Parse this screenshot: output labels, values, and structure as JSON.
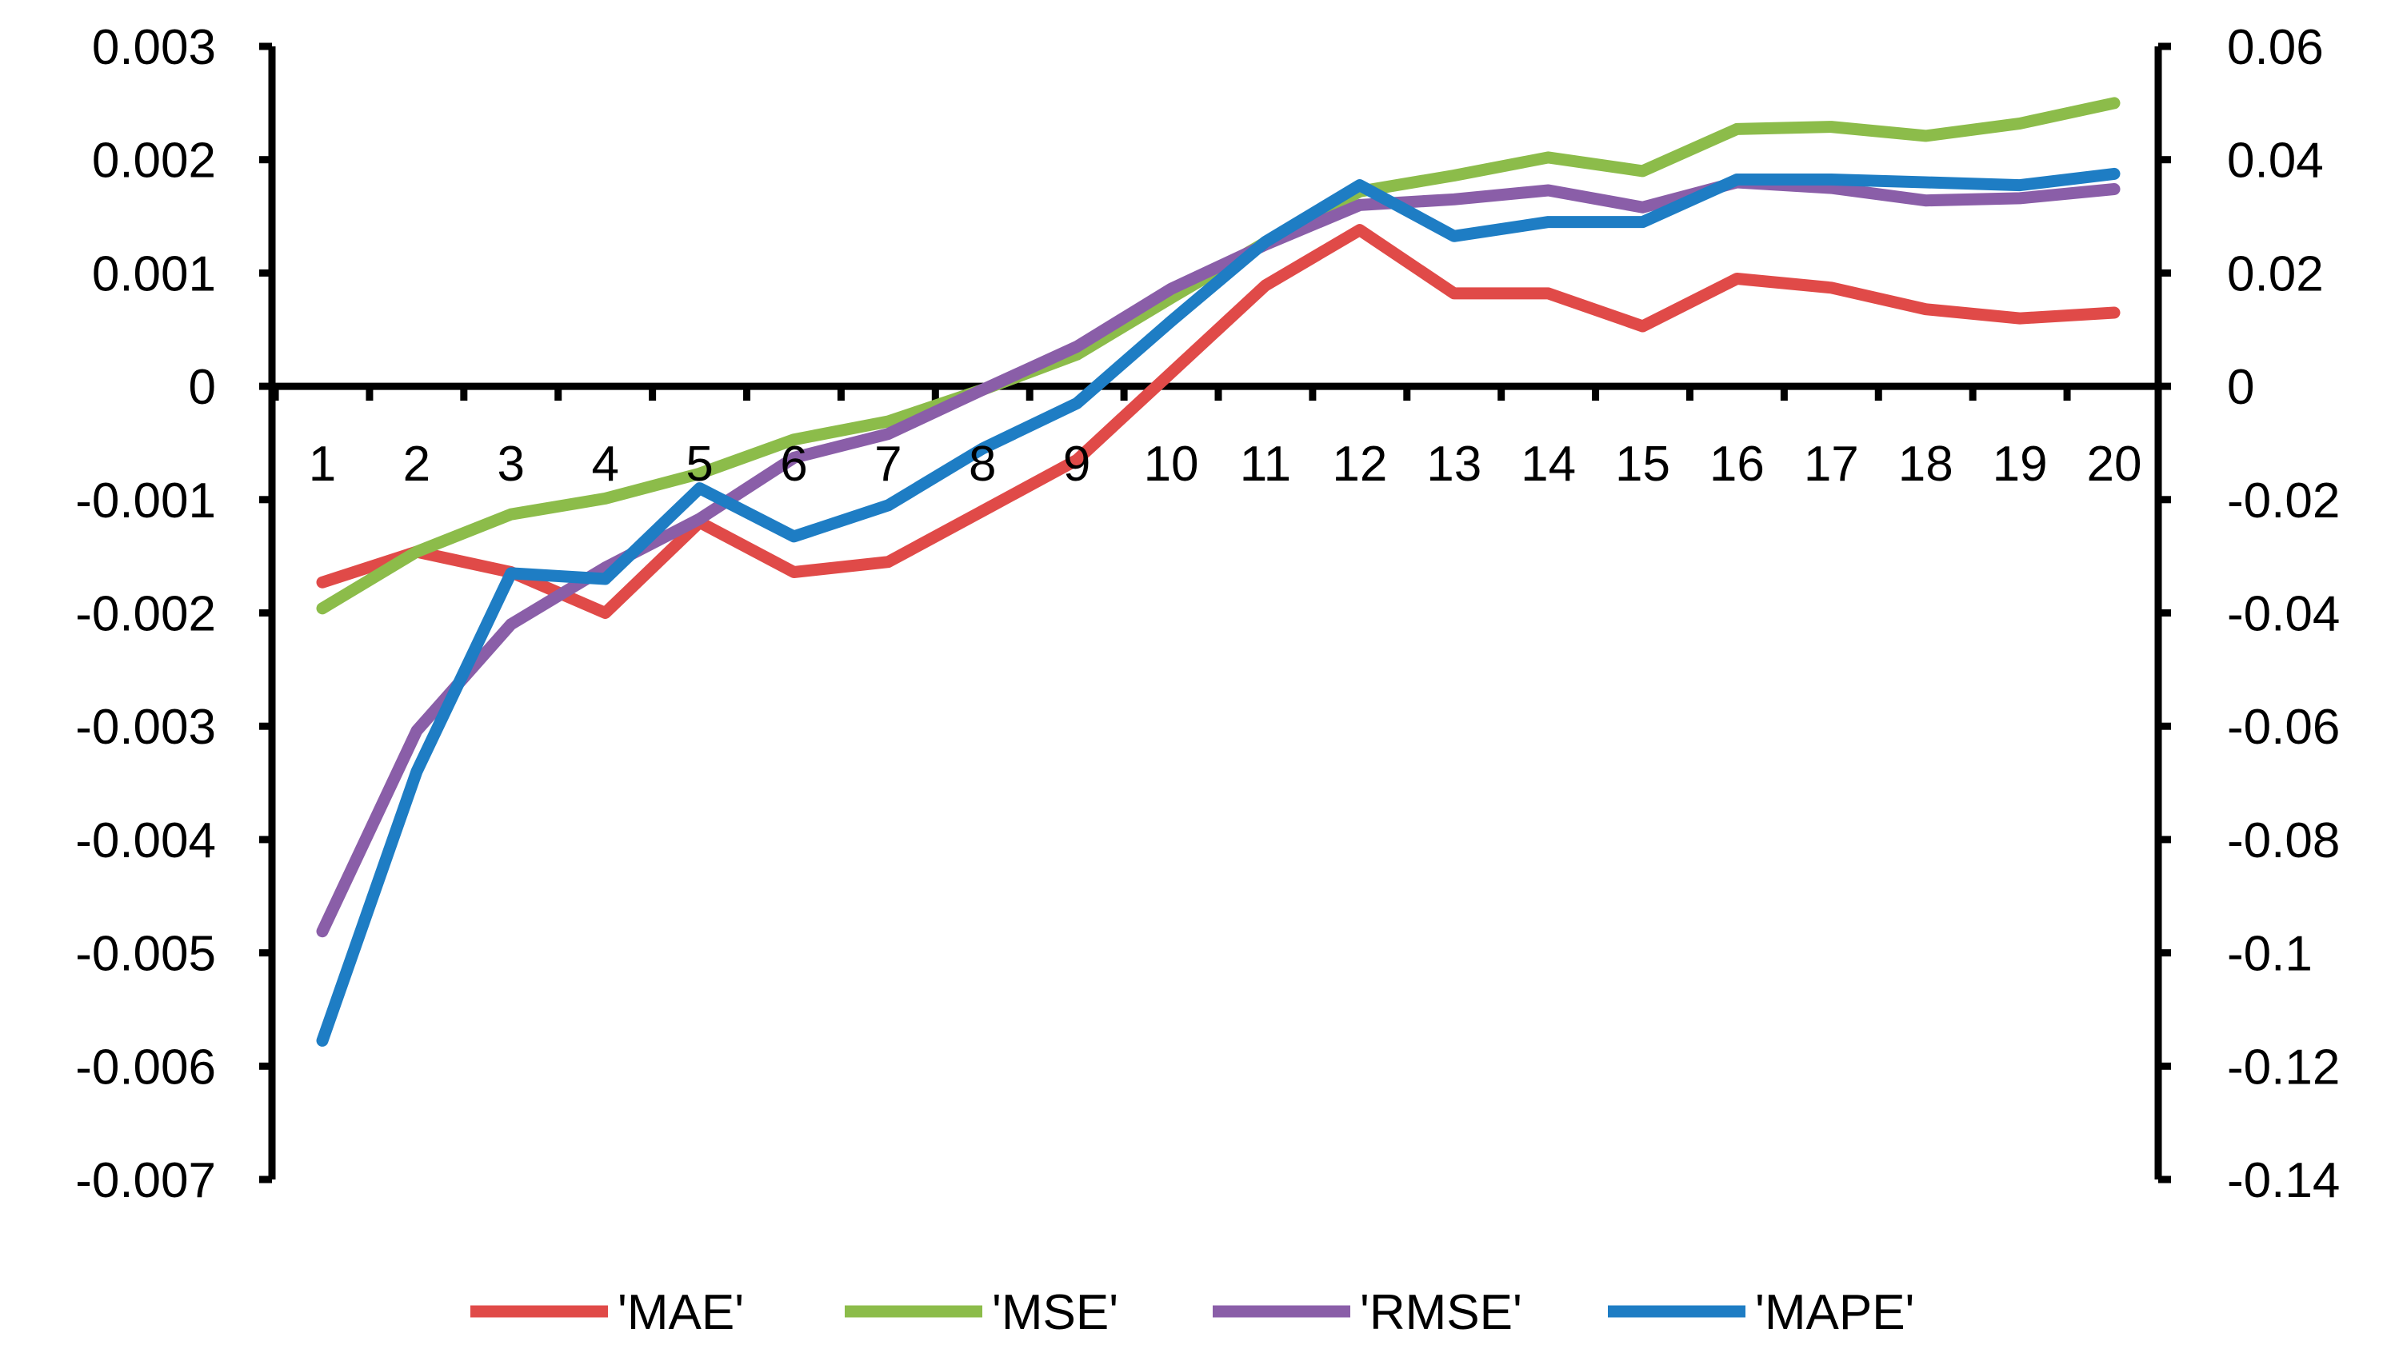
{
  "chart_data": {
    "type": "line",
    "x": [
      "1",
      "2",
      "3",
      "4",
      "5",
      "6",
      "7",
      "8",
      "9",
      "10",
      "11",
      "12",
      "13",
      "14",
      "15",
      "16",
      "17",
      "18",
      "19",
      "20"
    ],
    "y_left": {
      "ylim": [
        -0.007,
        0.003
      ],
      "ticks": [
        "0.003",
        "0.002",
        "0.001",
        "0",
        "-0.001",
        "-0.002",
        "-0.003",
        "-0.004",
        "-0.005",
        "-0.006",
        "-0.007"
      ]
    },
    "y_right": {
      "ylim": [
        -0.14,
        0.06
      ],
      "ticks": [
        "0.06",
        "0.04",
        "0.02",
        "0",
        "-0.02",
        "-0.04",
        "-0.06",
        "-0.08",
        "-0.1",
        "-0.12",
        "-0.14"
      ]
    },
    "series": [
      {
        "name": "'MAE'",
        "color": "#e04a48",
        "axis": "left",
        "values": [
          -0.00173,
          -0.00146,
          -0.00164,
          -0.002,
          -0.0012,
          -0.00164,
          -0.00155,
          -0.0011,
          -0.00065,
          0.00012,
          0.00089,
          0.00138,
          0.00082,
          0.00082,
          0.00053,
          0.00095,
          0.00087,
          0.00068,
          0.0006,
          0.00065
        ]
      },
      {
        "name": "'MSE'",
        "color": "#8cbc4a",
        "axis": "left",
        "values": [
          -0.00196,
          -0.00146,
          -0.00113,
          -0.00099,
          -0.00077,
          -0.00047,
          -0.00031,
          -3e-05,
          0.00028,
          0.00078,
          0.00127,
          0.00172,
          0.00186,
          0.00202,
          0.0019,
          0.00227,
          0.00229,
          0.00221,
          0.00232,
          0.0025
        ]
      },
      {
        "name": "'RMSE'",
        "color": "#8a5ea8",
        "axis": "left",
        "values": [
          -0.00481,
          -0.00304,
          -0.0021,
          -0.0016,
          -0.00117,
          -0.00063,
          -0.00042,
          -3e-05,
          0.00035,
          0.00086,
          0.00125,
          0.0016,
          0.00165,
          0.00173,
          0.00158,
          0.0018,
          0.00175,
          0.00164,
          0.00166,
          0.00174
        ]
      },
      {
        "name": "'MAPE'",
        "color": "#1e7dc4",
        "axis": "right",
        "values": [
          -0.1155,
          -0.068,
          -0.033,
          -0.034,
          -0.018,
          -0.0265,
          -0.021,
          -0.011,
          -0.003,
          0.0115,
          0.0255,
          0.0355,
          0.0265,
          0.029,
          0.029,
          0.0365,
          0.0365,
          0.036,
          0.0355,
          0.0375
        ]
      }
    ]
  }
}
